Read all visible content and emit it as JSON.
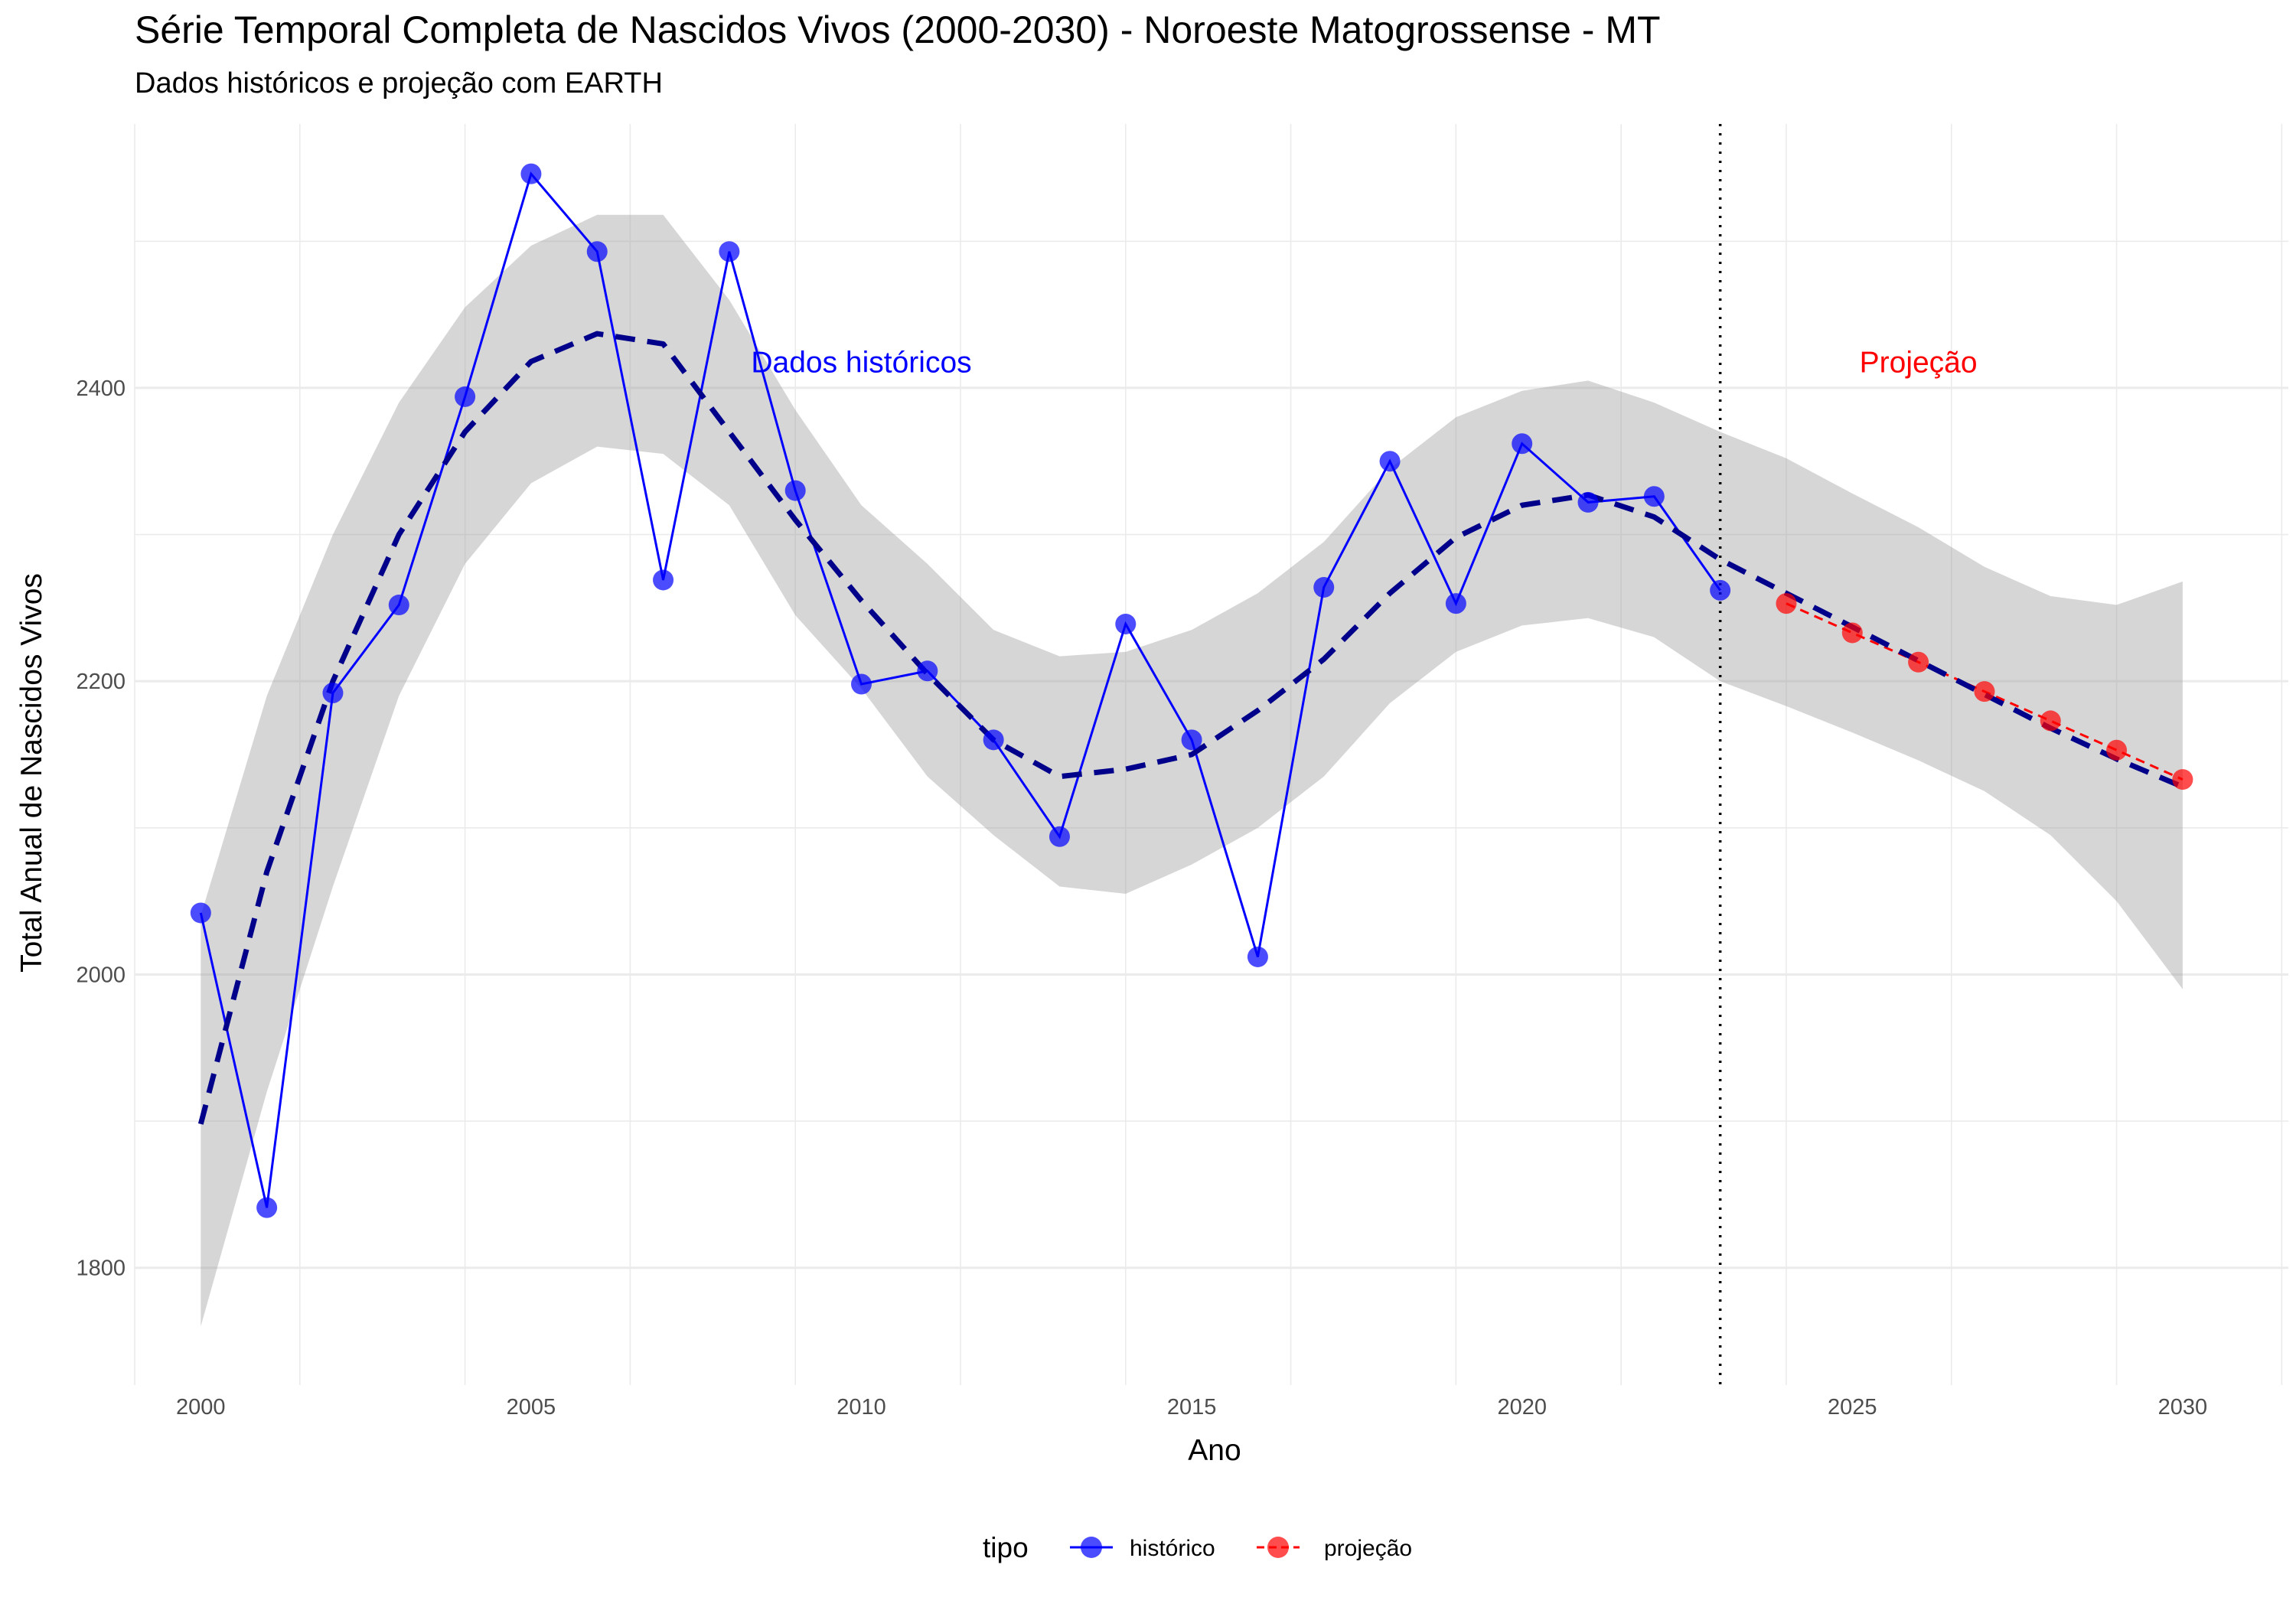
{
  "chart_data": {
    "type": "line",
    "title": "Série Temporal Completa de Nascidos Vivos (2000-2030) -  Noroeste Matogrossense - MT",
    "subtitle": "Dados históricos e projeção com EARTH",
    "xlabel": "Ano",
    "ylabel": "Total Anual de Nascidos Vivos",
    "xlim": [
      1999.0,
      2031.6
    ],
    "ylim": [
      1720,
      2580
    ],
    "x_ticks": [
      2000,
      2005,
      2010,
      2015,
      2020,
      2025,
      2030
    ],
    "y_ticks": [
      1800,
      2000,
      2200,
      2400
    ],
    "grid": true,
    "legend": {
      "title": "tipo",
      "position": "bottom"
    },
    "series": [
      {
        "name": "histórico",
        "color": "#0000ff",
        "x": [
          2000,
          2001,
          2002,
          2003,
          2004,
          2005,
          2006,
          2007,
          2008,
          2009,
          2010,
          2011,
          2012,
          2013,
          2014,
          2015,
          2016,
          2017,
          2018,
          2019,
          2020,
          2021,
          2022,
          2023
        ],
        "values": [
          2042,
          1841,
          2192,
          2252,
          2394,
          2546,
          2493,
          2269,
          2493,
          2330,
          2198,
          2207,
          2160,
          2094,
          2239,
          2160,
          2012,
          2264,
          2350,
          2253,
          2362,
          2322,
          2326,
          2262
        ]
      },
      {
        "name": "projeção",
        "color": "#ff0000",
        "x": [
          2024,
          2025,
          2026,
          2027,
          2028,
          2029,
          2030
        ],
        "values": [
          2253,
          2233,
          2213,
          2193,
          2173,
          2153,
          2133
        ]
      }
    ],
    "trend": {
      "style": "dashed",
      "color": "#00008b",
      "x": [
        2000,
        2001,
        2002,
        2003,
        2004,
        2005,
        2006,
        2007,
        2008,
        2009,
        2010,
        2011,
        2012,
        2013,
        2014,
        2015,
        2016,
        2017,
        2018,
        2019,
        2020,
        2021,
        2022,
        2023,
        2024,
        2025,
        2026,
        2027,
        2028,
        2029,
        2030
      ],
      "values": [
        1898,
        2070,
        2200,
        2300,
        2370,
        2418,
        2437,
        2430,
        2370,
        2310,
        2255,
        2205,
        2160,
        2135,
        2140,
        2150,
        2180,
        2215,
        2260,
        2298,
        2320,
        2327,
        2312,
        2283,
        2260,
        2237,
        2214,
        2191,
        2168,
        2147,
        2128
      ],
      "band_low": [
        1760,
        1920,
        2060,
        2190,
        2280,
        2335,
        2360,
        2355,
        2320,
        2245,
        2195,
        2135,
        2095,
        2060,
        2055,
        2075,
        2100,
        2135,
        2185,
        2220,
        2238,
        2243,
        2230,
        2200,
        2183,
        2165,
        2146,
        2125,
        2095,
        2050,
        1990
      ],
      "band_high": [
        2040,
        2190,
        2300,
        2390,
        2455,
        2497,
        2518,
        2518,
        2460,
        2385,
        2320,
        2280,
        2235,
        2217,
        2220,
        2235,
        2260,
        2295,
        2345,
        2380,
        2398,
        2405,
        2390,
        2370,
        2352,
        2328,
        2305,
        2278,
        2258,
        2252,
        2268
      ]
    },
    "cutoff_line": {
      "x": 2023,
      "style": "dotted"
    },
    "annotations": [
      {
        "text": "Dados históricos",
        "x": 2010.0,
        "y": 2418,
        "color": "#0000ff"
      },
      {
        "text": "Projeção",
        "x": 2026.0,
        "y": 2418,
        "color": "#ff0000"
      }
    ]
  }
}
